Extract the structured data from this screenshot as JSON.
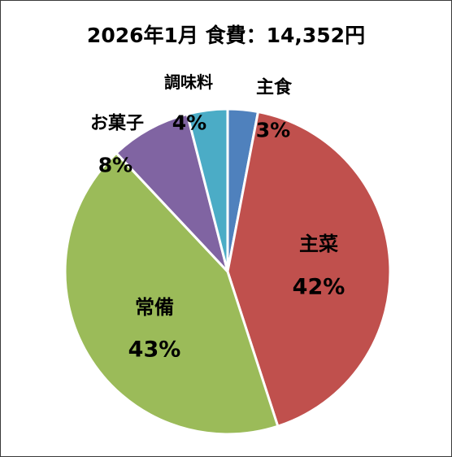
{
  "chart_data": {
    "type": "pie",
    "title": "2026年1月 食費：14,352円",
    "slices": [
      {
        "label": "主食",
        "percent_label": "3%",
        "value": 3,
        "color": "#4f81bd"
      },
      {
        "label": "主菜",
        "percent_label": "42%",
        "value": 42,
        "color": "#c0504d"
      },
      {
        "label": "常備",
        "percent_label": "43%",
        "value": 43,
        "color": "#9bbb59"
      },
      {
        "label": "お菓子",
        "percent_label": "8%",
        "value": 8,
        "color": "#8064a2"
      },
      {
        "label": "調味料",
        "percent_label": "4%",
        "value": 4,
        "color": "#4bacc6"
      }
    ],
    "start": "12 o'clock",
    "direction": "clockwise",
    "legend": "none"
  }
}
